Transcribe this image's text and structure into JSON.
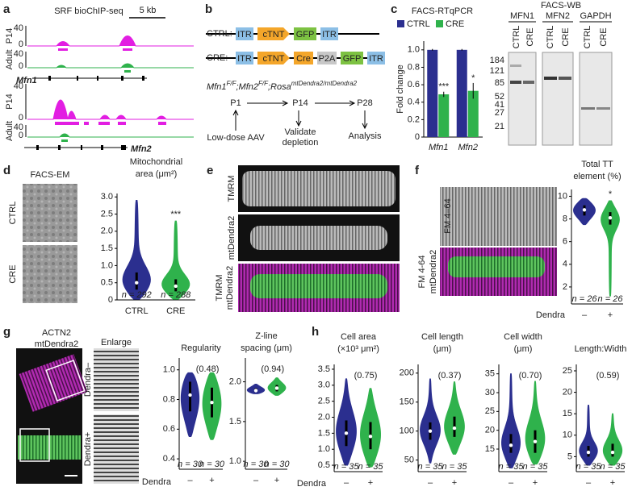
{
  "panel_labels": [
    "a",
    "b",
    "c",
    "d",
    "e",
    "f",
    "g",
    "h"
  ],
  "a": {
    "title": "SRF bioChIP-seq",
    "scale": "5 kb",
    "genes": [
      "Mfn1",
      "Mfn2"
    ],
    "tracks": [
      {
        "name": "P14",
        "ylim": [
          0,
          40
        ],
        "color": "#e21ee2"
      },
      {
        "name": "Adult",
        "ylim": [
          0,
          40
        ],
        "color": "#2fb24c"
      },
      {
        "name": "P14",
        "ylim": [
          0,
          40
        ],
        "color": "#e21ee2"
      },
      {
        "name": "Adult",
        "ylim": [
          0,
          40
        ],
        "color": "#2fb24c"
      }
    ]
  },
  "b": {
    "ctrl_label": "CTRL:",
    "cre_label": "CRE:",
    "ctrl_parts": [
      "ITR",
      "cTNT",
      "GFP",
      "ITR"
    ],
    "cre_parts": [
      "ITR",
      "cTNT",
      "Cre",
      "P2A",
      "GFP",
      "ITR"
    ],
    "genotype": [
      "Mfn1",
      "F/F",
      ";Mfn2",
      "F/F",
      ";Rosa",
      "mtDendra2/mtDendra2"
    ],
    "timepoints": [
      "P1",
      "P14",
      "P28"
    ],
    "steps": [
      [
        "Low-dose AAV"
      ],
      [
        "Validate",
        "depletion"
      ],
      [
        "Analysis"
      ]
    ]
  },
  "c": {
    "chart": {
      "type": "bar",
      "title": "FACS-RTqPCR",
      "ylabel": "Fold change",
      "categories": [
        "Mfn1",
        "Mfn2"
      ],
      "series": [
        {
          "name": "CTRL",
          "color": "#2b2f8f",
          "values": [
            1,
            1
          ],
          "errors": [
            0.01,
            0.01
          ]
        },
        {
          "name": "CRE",
          "color": "#2fb24c",
          "values": [
            0.49,
            0.53
          ],
          "errors": [
            0.03,
            0.09
          ],
          "significance": [
            "***",
            "*"
          ]
        }
      ],
      "ylim": [
        0,
        1.1
      ],
      "yticks": [
        0,
        0.2,
        0.4,
        0.6,
        0.8,
        {
          "value": 1,
          "label": "1.0"
        }
      ]
    },
    "western": {
      "title": "FACS-WB",
      "blots": [
        "MFN1",
        "MFN2",
        "GAPDH"
      ],
      "lanes": [
        "CTRL",
        "CRE"
      ],
      "markers": [
        184,
        121,
        85,
        52,
        41,
        27,
        21
      ]
    }
  },
  "d": {
    "em_title": "FACS-EM",
    "rows": [
      "CTRL",
      "CRE"
    ],
    "chart": {
      "type": "violin",
      "title": [
        "Mitochondrial",
        "area (μm²)"
      ],
      "categories": [
        "CTRL",
        "CRE"
      ],
      "colors": [
        "#2b2f8f",
        "#2fb24c"
      ],
      "mins": [
        0.02,
        0.02
      ],
      "q1": [
        0.3,
        0.25
      ],
      "medians": [
        0.5,
        0.4
      ],
      "q3": [
        0.8,
        0.6
      ],
      "maxs": [
        2.9,
        2.3
      ],
      "n_labels": [
        "n = 292",
        "n = 288"
      ],
      "significance": "***",
      "ylim": [
        0,
        3.1
      ],
      "yticks": [
        0,
        0.5,
        {
          "value": 1,
          "label": "1.0"
        },
        1.5,
        {
          "value": 2,
          "label": "2.0"
        },
        2.5,
        {
          "value": 3,
          "label": "3.0"
        }
      ]
    }
  },
  "e": {
    "labels": [
      "TMRM",
      "mtDendra2"
    ],
    "merge_labels": [
      "TMRM",
      "mtDendra2"
    ]
  },
  "f": {
    "image_label": "FM 4–64",
    "merge_labels": [
      "FM 4-64",
      "mtDendra2"
    ],
    "chart": {
      "type": "violin",
      "title": [
        "Total TT",
        "element (%)"
      ],
      "xlabel": "Dendra",
      "categories": [
        "–",
        "+"
      ],
      "colors": [
        "#2b2f8f",
        "#2fb24c"
      ],
      "mins": [
        7.5,
        1.2
      ],
      "q1": [
        8.3,
        7.5
      ],
      "medians": [
        8.8,
        8.1
      ],
      "q3": [
        9.2,
        8.6
      ],
      "maxs": [
        9.8,
        9.6
      ],
      "n_labels": [
        "n = 26",
        "n = 26"
      ],
      "significance": "*",
      "ylim": [
        0.5,
        10.6
      ],
      "yticks": [
        2,
        4,
        6,
        8,
        10
      ]
    }
  },
  "g": {
    "stain_labels": [
      "ACTN2",
      "mtDendra2"
    ],
    "enlarge": "Enlarge",
    "rows": [
      "Dendra–",
      "Dendra+"
    ],
    "xlabel": "Dendra",
    "charts": [
      {
        "type": "violin",
        "title": [
          "Regularity"
        ],
        "categories": [
          "–",
          "+"
        ],
        "colors": [
          "#2b2f8f",
          "#2fb24c"
        ],
        "mins": [
          0.55,
          0.53
        ],
        "q1": [
          0.72,
          0.68
        ],
        "medians": [
          0.83,
          0.78
        ],
        "q3": [
          0.92,
          0.88
        ],
        "maxs": [
          0.98,
          0.98
        ],
        "n_labels": [
          "n = 30",
          "n = 30"
        ],
        "annotation": "(0.48)",
        "ylim": [
          0.33,
          1.08
        ],
        "yticks": [
          0.4,
          0.6,
          0.8,
          {
            "value": 1,
            "label": "1.0"
          }
        ]
      },
      {
        "type": "violin",
        "title": [
          "Z-line",
          "spacing (μm)"
        ],
        "categories": [
          "–",
          "+"
        ],
        "colors": [
          "#2b2f8f",
          "#2fb24c"
        ],
        "mins": [
          1.85,
          1.83
        ],
        "q1": [
          1.87,
          1.88
        ],
        "medians": [
          1.89,
          1.92
        ],
        "q3": [
          1.92,
          1.96
        ],
        "maxs": [
          1.97,
          2.05
        ],
        "n_labels": [
          "n = 30",
          "n = 30"
        ],
        "annotation": "(0.94)",
        "ylim": [
          0.9,
          2.3
        ],
        "yticks": [
          {
            "value": 1,
            "label": "1.0"
          },
          1.5,
          {
            "value": 2,
            "label": "2.0"
          }
        ]
      }
    ]
  },
  "h": {
    "xlabel": "Dendra",
    "charts": [
      {
        "type": "violin",
        "title": [
          "Cell area",
          "(×10³ μm²)"
        ],
        "categories": [
          "–",
          "+"
        ],
        "colors": [
          "#2b2f8f",
          "#2fb24c"
        ],
        "mins": [
          0.5,
          0.45
        ],
        "q1": [
          1.1,
          1.0
        ],
        "medians": [
          1.5,
          1.4
        ],
        "q3": [
          1.9,
          1.85
        ],
        "maxs": [
          3.2,
          2.9
        ],
        "n_labels": [
          "n = 35",
          "n = 35"
        ],
        "annotation": "(0.75)",
        "ylim": [
          0.3,
          3.65
        ],
        "yticks": [
          0.5,
          {
            "value": 1,
            "label": "1.0"
          },
          1.5,
          {
            "value": 2,
            "label": "2.0"
          },
          2.5,
          {
            "value": 3,
            "label": "3.0"
          },
          3.5
        ]
      },
      {
        "type": "violin",
        "title": [
          "Cell length",
          "(μm)"
        ],
        "categories": [
          "–",
          "+"
        ],
        "colors": [
          "#2b2f8f",
          "#2fb24c"
        ],
        "mins": [
          45,
          60
        ],
        "q1": [
          85,
          90
        ],
        "medians": [
          100,
          105
        ],
        "q3": [
          115,
          125
        ],
        "maxs": [
          190,
          185
        ],
        "n_labels": [
          "n = 35",
          "n = 35"
        ],
        "annotation": "(0.37)",
        "ylim": [
          30,
          215
        ],
        "yticks": [
          50,
          100,
          150,
          200
        ]
      },
      {
        "type": "violin",
        "title": [
          "Cell width",
          "(μm)"
        ],
        "categories": [
          "–",
          "+"
        ],
        "colors": [
          "#2b2f8f",
          "#2fb24c"
        ],
        "mins": [
          10,
          11
        ],
        "q1": [
          14,
          14
        ],
        "medians": [
          16,
          17
        ],
        "q3": [
          19,
          20
        ],
        "maxs": [
          35,
          33
        ],
        "n_labels": [
          "n = 35",
          "n = 35"
        ],
        "annotation": "(0.70)",
        "ylim": [
          9,
          37.5
        ],
        "yticks": [
          15,
          20,
          25,
          30,
          35
        ]
      },
      {
        "type": "violin",
        "title": [
          "Length:Width"
        ],
        "categories": [
          "–",
          "+"
        ],
        "colors": [
          "#2b2f8f",
          "#2fb24c"
        ],
        "mins": [
          3,
          3
        ],
        "q1": [
          5,
          5
        ],
        "medians": [
          6,
          6
        ],
        "q3": [
          7.5,
          8
        ],
        "maxs": [
          17,
          15
        ],
        "n_labels": [
          "n = 35",
          "n = 35"
        ],
        "annotation": "(0.59)",
        "ylim": [
          1.5,
          26.5
        ],
        "yticks": [
          5,
          10,
          15,
          20,
          25
        ]
      }
    ]
  }
}
